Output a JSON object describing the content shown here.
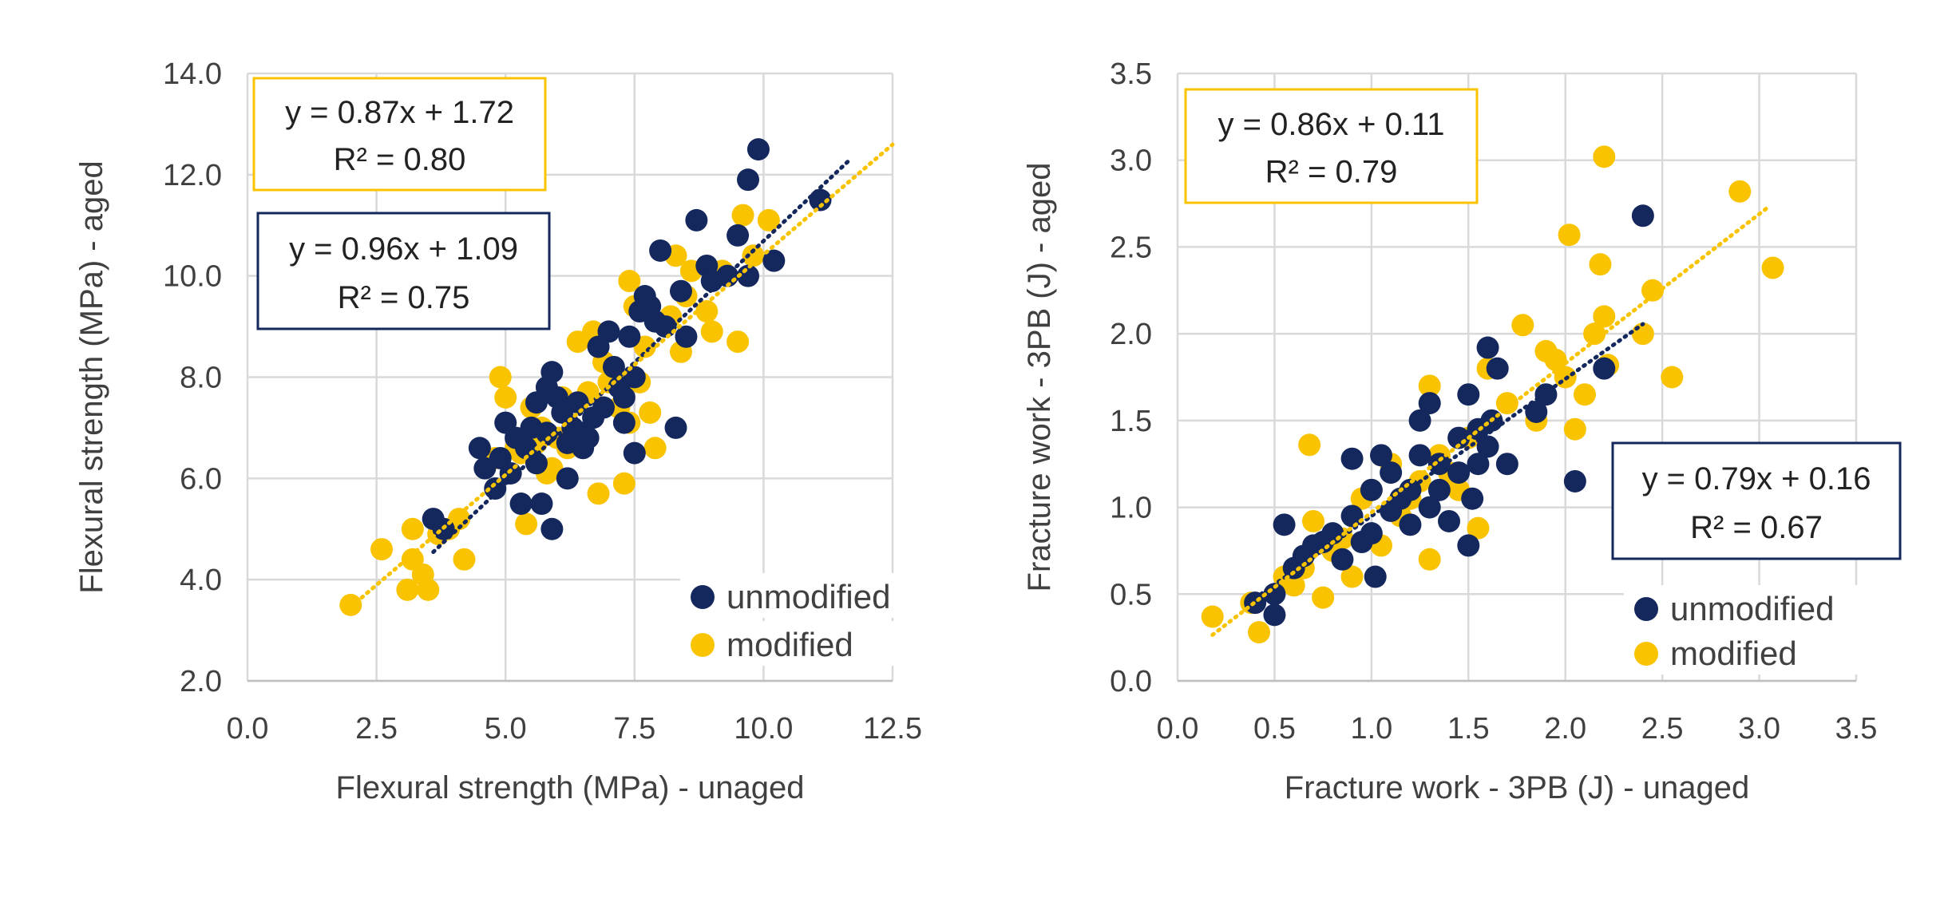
{
  "chart_data": [
    {
      "type": "scatter",
      "title": "",
      "xlabel": "Flexural strength (MPa) - unaged",
      "ylabel": "Flexural strength (MPa) - aged",
      "xlim": [
        0.0,
        12.5
      ],
      "ylim": [
        2.0,
        14.0
      ],
      "xticks": [
        0.0,
        2.5,
        5.0,
        7.5,
        10.0,
        12.5
      ],
      "yticks": [
        2.0,
        4.0,
        6.0,
        8.0,
        10.0,
        12.0,
        14.0
      ],
      "xtick_labels": [
        "0.0",
        "2.5",
        "5.0",
        "7.5",
        "10.0",
        "12.5"
      ],
      "ytick_labels": [
        "2.0",
        "4.0",
        "6.0",
        "8.0",
        "10.0",
        "12.0",
        "14.0"
      ],
      "grid": true,
      "legend_position": "bottom-right",
      "series": [
        {
          "name": "unmodified",
          "color": "#14285e",
          "trend": {
            "slope": 0.96,
            "intercept": 1.09,
            "x_range": [
              3.6,
              11.7
            ]
          },
          "equation": {
            "line1": "y = 0.96x + 1.09",
            "line2": "R² = 0.75"
          },
          "points": [
            [
              3.6,
              5.2
            ],
            [
              3.8,
              5.0
            ],
            [
              4.5,
              6.6
            ],
            [
              4.6,
              6.2
            ],
            [
              4.8,
              5.8
            ],
            [
              4.9,
              6.4
            ],
            [
              5.0,
              7.1
            ],
            [
              5.1,
              6.1
            ],
            [
              5.2,
              6.8
            ],
            [
              5.3,
              5.5
            ],
            [
              5.4,
              6.6
            ],
            [
              5.5,
              7.0
            ],
            [
              5.6,
              7.5
            ],
            [
              5.6,
              6.3
            ],
            [
              5.7,
              5.5
            ],
            [
              5.8,
              7.8
            ],
            [
              5.8,
              6.9
            ],
            [
              5.9,
              8.1
            ],
            [
              5.9,
              5.0
            ],
            [
              6.0,
              7.6
            ],
            [
              6.1,
              7.3
            ],
            [
              6.2,
              6.0
            ],
            [
              6.2,
              6.7
            ],
            [
              6.3,
              7.0
            ],
            [
              6.4,
              7.5
            ],
            [
              6.5,
              6.6
            ],
            [
              6.5,
              6.9
            ],
            [
              6.6,
              6.8
            ],
            [
              6.7,
              7.2
            ],
            [
              6.8,
              8.6
            ],
            [
              6.9,
              7.4
            ],
            [
              7.0,
              8.9
            ],
            [
              7.1,
              8.2
            ],
            [
              7.2,
              7.8
            ],
            [
              7.3,
              7.1
            ],
            [
              7.3,
              7.6
            ],
            [
              7.4,
              8.8
            ],
            [
              7.5,
              8.0
            ],
            [
              7.5,
              6.5
            ],
            [
              7.6,
              9.3
            ],
            [
              7.7,
              9.6
            ],
            [
              7.8,
              9.4
            ],
            [
              7.9,
              9.1
            ],
            [
              8.0,
              10.5
            ],
            [
              8.1,
              9.0
            ],
            [
              8.3,
              7.0
            ],
            [
              8.4,
              9.7
            ],
            [
              8.5,
              8.8
            ],
            [
              8.7,
              11.1
            ],
            [
              8.9,
              10.2
            ],
            [
              9.0,
              9.9
            ],
            [
              9.3,
              10.0
            ],
            [
              9.5,
              10.8
            ],
            [
              9.7,
              10.0
            ],
            [
              9.7,
              11.9
            ],
            [
              9.9,
              12.5
            ],
            [
              10.2,
              10.3
            ],
            [
              11.1,
              11.5
            ]
          ]
        },
        {
          "name": "modified",
          "color": "#f9c300",
          "trend": {
            "slope": 0.87,
            "intercept": 1.72,
            "x_range": [
              2.0,
              12.5
            ]
          },
          "equation": {
            "line1": "y = 0.87x + 1.72",
            "line2": "R² = 0.80"
          },
          "points": [
            [
              2.0,
              3.5
            ],
            [
              2.6,
              4.6
            ],
            [
              3.1,
              3.8
            ],
            [
              3.2,
              4.4
            ],
            [
              3.2,
              5.0
            ],
            [
              3.4,
              4.1
            ],
            [
              3.5,
              3.8
            ],
            [
              3.7,
              4.9
            ],
            [
              3.9,
              5.0
            ],
            [
              4.1,
              5.2
            ],
            [
              4.2,
              4.4
            ],
            [
              4.8,
              6.4
            ],
            [
              4.9,
              8.0
            ],
            [
              5.0,
              7.6
            ],
            [
              5.2,
              6.6
            ],
            [
              5.3,
              6.5
            ],
            [
              5.4,
              5.1
            ],
            [
              5.5,
              7.4
            ],
            [
              5.6,
              6.7
            ],
            [
              5.7,
              7.0
            ],
            [
              5.8,
              6.1
            ],
            [
              5.9,
              6.2
            ],
            [
              6.0,
              6.8
            ],
            [
              6.1,
              7.6
            ],
            [
              6.2,
              6.6
            ],
            [
              6.4,
              8.7
            ],
            [
              6.6,
              7.7
            ],
            [
              6.7,
              8.9
            ],
            [
              6.8,
              5.7
            ],
            [
              6.9,
              8.3
            ],
            [
              7.0,
              7.9
            ],
            [
              7.1,
              8.1
            ],
            [
              7.2,
              7.4
            ],
            [
              7.3,
              5.9
            ],
            [
              7.4,
              7.1
            ],
            [
              7.4,
              9.9
            ],
            [
              7.5,
              9.4
            ],
            [
              7.6,
              7.9
            ],
            [
              7.7,
              8.6
            ],
            [
              7.8,
              7.3
            ],
            [
              7.9,
              6.6
            ],
            [
              8.2,
              9.2
            ],
            [
              8.3,
              10.4
            ],
            [
              8.4,
              8.5
            ],
            [
              8.5,
              9.6
            ],
            [
              8.6,
              10.1
            ],
            [
              8.9,
              9.3
            ],
            [
              9.0,
              8.9
            ],
            [
              9.2,
              10.1
            ],
            [
              9.5,
              8.7
            ],
            [
              9.6,
              11.2
            ],
            [
              9.8,
              10.4
            ],
            [
              10.1,
              11.1
            ]
          ]
        }
      ]
    },
    {
      "type": "scatter",
      "title": "",
      "xlabel": "Fracture work - 3PB (J) - unaged",
      "ylabel": "Fracture work - 3PB (J) - aged",
      "xlim": [
        0.0,
        3.5
      ],
      "ylim": [
        0.0,
        3.5
      ],
      "xticks": [
        0.0,
        0.5,
        1.0,
        1.5,
        2.0,
        2.5,
        3.0,
        3.5
      ],
      "yticks": [
        0.0,
        0.5,
        1.0,
        1.5,
        2.0,
        2.5,
        3.0,
        3.5
      ],
      "xtick_labels": [
        "0.0",
        "0.5",
        "1.0",
        "1.5",
        "2.0",
        "2.5",
        "3.0",
        "3.5"
      ],
      "ytick_labels": [
        "0.0",
        "0.5",
        "1.0",
        "1.5",
        "2.0",
        "2.5",
        "3.0",
        "3.5"
      ],
      "grid": true,
      "legend_position": "bottom-right",
      "series": [
        {
          "name": "unmodified",
          "color": "#14285e",
          "trend": {
            "slope": 0.79,
            "intercept": 0.16,
            "x_range": [
              0.4,
              2.4
            ]
          },
          "equation": {
            "line1": "y = 0.79x + 0.16",
            "line2": "R² = 0.67"
          },
          "points": [
            [
              0.4,
              0.45
            ],
            [
              0.5,
              0.38
            ],
            [
              0.5,
              0.5
            ],
            [
              0.55,
              0.9
            ],
            [
              0.6,
              0.65
            ],
            [
              0.65,
              0.72
            ],
            [
              0.7,
              0.78
            ],
            [
              0.75,
              0.8
            ],
            [
              0.8,
              0.85
            ],
            [
              0.85,
              0.7
            ],
            [
              0.9,
              1.28
            ],
            [
              0.9,
              0.95
            ],
            [
              0.95,
              0.8
            ],
            [
              1.0,
              1.1
            ],
            [
              1.0,
              0.85
            ],
            [
              1.02,
              0.6
            ],
            [
              1.05,
              1.3
            ],
            [
              1.1,
              1.2
            ],
            [
              1.1,
              0.98
            ],
            [
              1.15,
              1.05
            ],
            [
              1.2,
              1.1
            ],
            [
              1.2,
              0.9
            ],
            [
              1.25,
              1.3
            ],
            [
              1.25,
              1.5
            ],
            [
              1.3,
              1.6
            ],
            [
              1.3,
              1.0
            ],
            [
              1.35,
              1.25
            ],
            [
              1.35,
              1.1
            ],
            [
              1.4,
              0.92
            ],
            [
              1.45,
              1.4
            ],
            [
              1.45,
              1.2
            ],
            [
              1.5,
              0.78
            ],
            [
              1.5,
              1.65
            ],
            [
              1.52,
              1.05
            ],
            [
              1.55,
              1.25
            ],
            [
              1.55,
              1.45
            ],
            [
              1.6,
              1.92
            ],
            [
              1.6,
              1.35
            ],
            [
              1.62,
              1.5
            ],
            [
              1.65,
              1.8
            ],
            [
              1.7,
              1.25
            ],
            [
              1.85,
              1.55
            ],
            [
              1.9,
              1.65
            ],
            [
              2.05,
              1.15
            ],
            [
              2.2,
              1.8
            ],
            [
              2.4,
              2.68
            ]
          ]
        },
        {
          "name": "modified",
          "color": "#f9c300",
          "trend": {
            "slope": 0.86,
            "intercept": 0.11,
            "x_range": [
              0.18,
              3.05
            ]
          },
          "equation": {
            "line1": "y = 0.86x + 0.11",
            "line2": "R² = 0.79"
          },
          "points": [
            [
              0.18,
              0.37
            ],
            [
              0.38,
              0.45
            ],
            [
              0.42,
              0.28
            ],
            [
              0.55,
              0.6
            ],
            [
              0.6,
              0.55
            ],
            [
              0.65,
              0.65
            ],
            [
              0.68,
              1.36
            ],
            [
              0.7,
              0.92
            ],
            [
              0.75,
              0.48
            ],
            [
              0.8,
              0.75
            ],
            [
              0.85,
              0.82
            ],
            [
              0.9,
              0.6
            ],
            [
              0.95,
              1.05
            ],
            [
              1.0,
              1.1
            ],
            [
              1.05,
              0.78
            ],
            [
              1.1,
              1.25
            ],
            [
              1.15,
              0.95
            ],
            [
              1.2,
              1.05
            ],
            [
              1.25,
              1.15
            ],
            [
              1.3,
              0.7
            ],
            [
              1.3,
              1.7
            ],
            [
              1.35,
              1.3
            ],
            [
              1.4,
              1.2
            ],
            [
              1.45,
              1.1
            ],
            [
              1.5,
              1.4
            ],
            [
              1.55,
              0.88
            ],
            [
              1.6,
              1.8
            ],
            [
              1.7,
              1.6
            ],
            [
              1.78,
              2.05
            ],
            [
              1.85,
              1.5
            ],
            [
              1.9,
              1.9
            ],
            [
              1.95,
              1.85
            ],
            [
              2.0,
              1.75
            ],
            [
              2.02,
              2.57
            ],
            [
              2.05,
              1.45
            ],
            [
              2.1,
              1.65
            ],
            [
              2.15,
              2.0
            ],
            [
              2.18,
              2.4
            ],
            [
              2.2,
              2.1
            ],
            [
              2.2,
              3.02
            ],
            [
              2.22,
              1.82
            ],
            [
              2.4,
              2.0
            ],
            [
              2.45,
              2.25
            ],
            [
              2.55,
              1.75
            ],
            [
              2.9,
              2.82
            ],
            [
              3.07,
              2.38
            ]
          ]
        }
      ]
    }
  ]
}
